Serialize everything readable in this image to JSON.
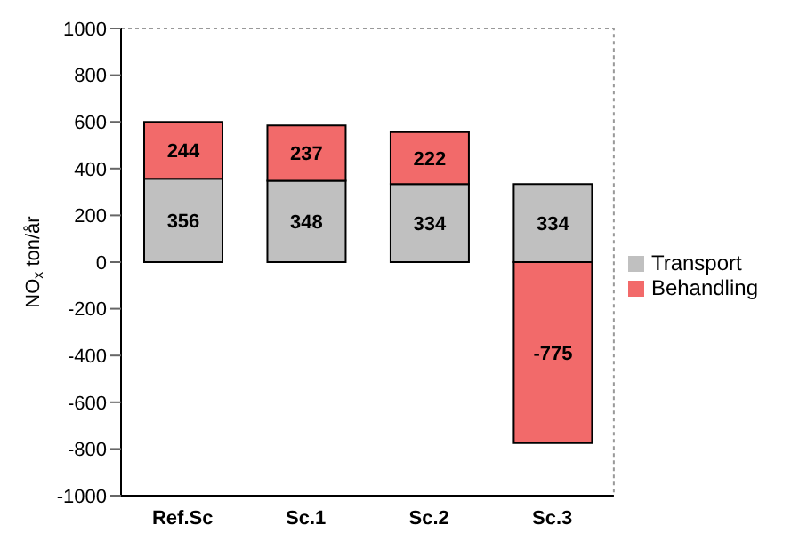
{
  "chart_data": {
    "type": "bar",
    "stacked": true,
    "ylabel": "NO$_{x}$ ton/år",
    "categories": [
      "Ref.Sc",
      "Sc.1",
      "Sc.2",
      "Sc.3"
    ],
    "series": [
      {
        "name": "Transport",
        "color": "#c0c0c0",
        "values": [
          356,
          348,
          334,
          334
        ]
      },
      {
        "name": "Behandling",
        "color": "#f26a6a",
        "values": [
          244,
          237,
          222,
          -775
        ]
      }
    ],
    "ylim": [
      -1000,
      1000
    ],
    "yticks": [
      -1000,
      -800,
      -600,
      -400,
      -200,
      0,
      200,
      400,
      600,
      800,
      1000
    ],
    "data_labels": true,
    "legend": "right",
    "grid": false
  }
}
